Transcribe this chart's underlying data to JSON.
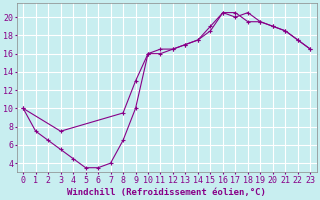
{
  "xlabel": "Windchill (Refroidissement éolien,°C)",
  "background_color": "#c8eef0",
  "grid_color": "#c0dde0",
  "line_color": "#880088",
  "xlim": [
    -0.5,
    23.5
  ],
  "ylim": [
    3.0,
    21.5
  ],
  "xticks": [
    0,
    1,
    2,
    3,
    4,
    5,
    6,
    7,
    8,
    9,
    10,
    11,
    12,
    13,
    14,
    15,
    16,
    17,
    18,
    19,
    20,
    21,
    22,
    23
  ],
  "yticks": [
    4,
    6,
    8,
    10,
    12,
    14,
    16,
    18,
    20
  ],
  "line1_x": [
    0,
    1,
    2,
    3,
    4,
    5,
    6,
    7,
    8,
    9,
    10,
    11,
    12,
    13,
    14,
    15,
    16,
    17,
    18,
    19,
    20,
    21,
    22,
    23
  ],
  "line1_y": [
    10,
    7.5,
    6.5,
    5.5,
    4.5,
    3.5,
    3.5,
    4.0,
    6.5,
    10.0,
    16.0,
    16.0,
    16.5,
    17.0,
    17.5,
    18.5,
    20.5,
    20.0,
    20.5,
    19.5,
    19.0,
    18.5,
    17.5,
    16.5
  ],
  "line2_x": [
    0,
    3,
    8,
    9,
    10,
    11,
    12,
    13,
    14,
    15,
    16,
    17,
    18,
    19,
    20,
    21,
    22,
    23
  ],
  "line2_y": [
    10,
    7.5,
    9.5,
    13.0,
    16.0,
    16.5,
    16.5,
    17.0,
    17.5,
    19.0,
    20.5,
    20.5,
    19.5,
    19.5,
    19.0,
    18.5,
    17.5,
    16.5
  ],
  "font_size_ticks": 6,
  "font_size_label": 6.5
}
